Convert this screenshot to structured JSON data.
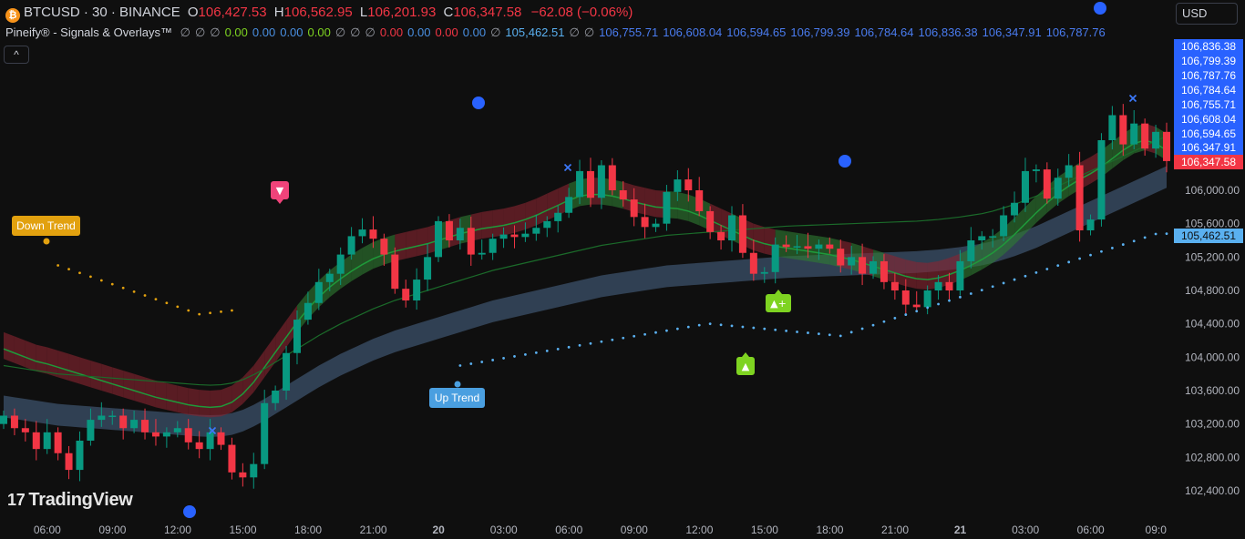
{
  "header": {
    "symbol": "BTCUSD · 30 · BINANCE",
    "coin_glyph": "₿",
    "o_label": "O",
    "o_value": "106,427.53",
    "h_label": "H",
    "h_value": "106,562.95",
    "l_label": "L",
    "l_value": "106,201.93",
    "c_label": "C",
    "c_value": "106,347.58",
    "change": "−62.08 (−0.06%)"
  },
  "indicator": {
    "name": "Pineify® - Signals & Overlays™",
    "values": [
      {
        "text": "∅",
        "color": "#9598a1"
      },
      {
        "text": "∅",
        "color": "#9598a1"
      },
      {
        "text": "∅",
        "color": "#9598a1"
      },
      {
        "text": "0.00",
        "color": "#7ed321"
      },
      {
        "text": "0.00",
        "color": "#4a90e2"
      },
      {
        "text": "0.00",
        "color": "#4a90e2"
      },
      {
        "text": "0.00",
        "color": "#7ed321"
      },
      {
        "text": "∅",
        "color": "#9598a1"
      },
      {
        "text": "∅",
        "color": "#9598a1"
      },
      {
        "text": "∅",
        "color": "#9598a1"
      },
      {
        "text": "0.00",
        "color": "#f23645"
      },
      {
        "text": "0.00",
        "color": "#4a90e2"
      },
      {
        "text": "0.00",
        "color": "#f23645"
      },
      {
        "text": "0.00",
        "color": "#4a90e2"
      },
      {
        "text": "∅",
        "color": "#9598a1"
      },
      {
        "text": "105,462.51",
        "color": "#5ab0f0"
      },
      {
        "text": "∅",
        "color": "#9598a1"
      },
      {
        "text": "∅",
        "color": "#9598a1"
      },
      {
        "text": "106,755.71",
        "color": "#4a7cf0"
      },
      {
        "text": "106,608.04",
        "color": "#4a7cf0"
      },
      {
        "text": "106,594.65",
        "color": "#4a7cf0"
      },
      {
        "text": "106,799.39",
        "color": "#4a7cf0"
      },
      {
        "text": "106,784.64",
        "color": "#4a7cf0"
      },
      {
        "text": "106,836.38",
        "color": "#4a7cf0"
      },
      {
        "text": "106,347.91",
        "color": "#4a7cf0"
      },
      {
        "text": "106,787.76",
        "color": "#4a7cf0"
      }
    ]
  },
  "controls": {
    "collapse_glyph": "^",
    "currency": "USD"
  },
  "branding": {
    "logo_mark": "17",
    "logo_text": "TradingView"
  },
  "chart_data": {
    "type": "candlestick",
    "y_ticks": [
      "106,000.00",
      "105,600.00",
      "105,200.00",
      "104,800.00",
      "104,400.00",
      "104,000.00",
      "103,600.00",
      "103,200.00",
      "102,800.00",
      "102,400.00"
    ],
    "y_tick_values": [
      106000,
      105600,
      105200,
      104800,
      104400,
      104000,
      103600,
      103200,
      102800,
      102400
    ],
    "x_ticks": [
      {
        "label": "06:00",
        "bold": false
      },
      {
        "label": "09:00",
        "bold": false
      },
      {
        "label": "12:00",
        "bold": false
      },
      {
        "label": "15:00",
        "bold": false
      },
      {
        "label": "18:00",
        "bold": false
      },
      {
        "label": "21:00",
        "bold": false
      },
      {
        "label": "20",
        "bold": true
      },
      {
        "label": "03:00",
        "bold": false
      },
      {
        "label": "06:00",
        "bold": false
      },
      {
        "label": "09:00",
        "bold": false
      },
      {
        "label": "12:00",
        "bold": false
      },
      {
        "label": "15:00",
        "bold": false
      },
      {
        "label": "18:00",
        "bold": false
      },
      {
        "label": "21:00",
        "bold": false
      },
      {
        "label": "21",
        "bold": true
      },
      {
        "label": "03:00",
        "bold": false
      },
      {
        "label": "06:00",
        "bold": false
      },
      {
        "label": "09:0",
        "bold": false
      }
    ],
    "x_tick_bar_index": [
      2,
      8,
      14,
      20,
      26,
      32,
      38,
      44,
      50,
      56,
      62,
      68,
      74,
      80,
      86,
      92,
      98,
      104
    ],
    "price_tags": [
      {
        "text": "106,836.38",
        "value": 106836.38,
        "color": "#2962ff"
      },
      {
        "text": "106,799.39",
        "value": 106799.39,
        "color": "#2962ff"
      },
      {
        "text": "106,787.76",
        "value": 106787.76,
        "color": "#2962ff"
      },
      {
        "text": "106,784.64",
        "value": 106784.64,
        "color": "#2962ff"
      },
      {
        "text": "106,755.71",
        "value": 106755.71,
        "color": "#2962ff"
      },
      {
        "text": "106,608.04",
        "value": 106608.04,
        "color": "#2962ff"
      },
      {
        "text": "106,594.65",
        "value": 106594.65,
        "color": "#2962ff"
      },
      {
        "text": "106,347.91",
        "value": 106347.91,
        "color": "#2962ff"
      },
      {
        "text": "106,347.58",
        "value": 106347.58,
        "color": "#f23645"
      },
      {
        "text": "105,462.51",
        "value": 105462.51,
        "color": "#5ab0f0"
      }
    ],
    "candles_close": [
      103300,
      103150,
      103100,
      102900,
      103100,
      102850,
      102650,
      103000,
      103250,
      103300,
      103300,
      103150,
      103250,
      103100,
      103050,
      103100,
      103150,
      102980,
      102900,
      103100,
      102950,
      102620,
      102560,
      102720,
      103450,
      103600,
      104050,
      104450,
      104650,
      104900,
      105000,
      105230,
      105450,
      105530,
      105420,
      105230,
      104820,
      104680,
      104930,
      105200,
      105630,
      105400,
      105550,
      105230,
      105250,
      105420,
      105470,
      105440,
      105480,
      105550,
      105630,
      105730,
      105920,
      106230,
      105910,
      106300,
      106000,
      105890,
      105680,
      105560,
      105600,
      105980,
      106130,
      106000,
      105750,
      105500,
      105400,
      105700,
      105250,
      105000,
      105020,
      105350,
      105320,
      105330,
      105300,
      105350,
      105300,
      105100,
      105200,
      105000,
      105150,
      104900,
      104800,
      104630,
      104600,
      104800,
      104900,
      104800,
      105150,
      105400,
      105450,
      105450,
      105700,
      105850,
      106230,
      106250,
      105900,
      106150,
      106300,
      105520,
      105650,
      106600,
      106900,
      106550,
      106800,
      106500,
      106700,
      106350
    ],
    "ribbon_fast_mid": [
      104100,
      104050,
      104000,
      103950,
      103920,
      103880,
      103840,
      103800,
      103760,
      103720,
      103680,
      103640,
      103600,
      103560,
      103520,
      103490,
      103460,
      103430,
      103410,
      103400,
      103410,
      103460,
      103560,
      103700,
      103880,
      104060,
      104240,
      104420,
      104580,
      104720,
      104840,
      104940,
      105030,
      105110,
      105180,
      105230,
      105270,
      105300,
      105330,
      105360,
      105400,
      105440,
      105480,
      105510,
      105540,
      105560,
      105580,
      105610,
      105650,
      105700,
      105760,
      105820,
      105880,
      105930,
      105950,
      105950,
      105930,
      105900,
      105860,
      105830,
      105800,
      105790,
      105780,
      105750,
      105700,
      105640,
      105580,
      105520,
      105460,
      105400,
      105360,
      105330,
      105310,
      105290,
      105270,
      105250,
      105230,
      105200,
      105170,
      105130,
      105090,
      105050,
      105010,
      104970,
      104940,
      104930,
      104950,
      104990,
      105040,
      105100,
      105170,
      105250,
      105350,
      105470,
      105600,
      105730,
      105850,
      105960,
      106050,
      106130,
      106200,
      106280,
      106380,
      106480,
      106560,
      106600,
      106560,
      106480
    ],
    "ribbon_slow_mid": [
      103400,
      103380,
      103360,
      103340,
      103320,
      103300,
      103290,
      103280,
      103270,
      103260,
      103250,
      103240,
      103230,
      103220,
      103210,
      103200,
      103190,
      103180,
      103170,
      103165,
      103170,
      103190,
      103230,
      103290,
      103360,
      103440,
      103520,
      103600,
      103680,
      103760,
      103830,
      103900,
      103960,
      104020,
      104080,
      104130,
      104180,
      104220,
      104260,
      104300,
      104340,
      104380,
      104420,
      104460,
      104500,
      104540,
      104570,
      104600,
      104630,
      104660,
      104690,
      104720,
      104750,
      104780,
      104810,
      104840,
      104860,
      104880,
      104900,
      104920,
      104940,
      104960,
      104970,
      104980,
      104990,
      105000,
      105010,
      105020,
      105030,
      105040,
      105050,
      105060,
      105070,
      105075,
      105080,
      105085,
      105090,
      105095,
      105100,
      105105,
      105110,
      105115,
      105120,
      105125,
      105130,
      105140,
      105150,
      105165,
      105180,
      105200,
      105220,
      105250,
      105290,
      105330,
      105380,
      105430,
      105490,
      105550,
      105610,
      105670,
      105730,
      105790,
      105850,
      105910,
      105970,
      106030,
      106090,
      106150
    ],
    "trailing_stop_support": [],
    "annotations": [
      {
        "type": "label",
        "text": "Down Trend",
        "color": "#e2a10f"
      },
      {
        "type": "label",
        "text": "Up Trend",
        "color": "#4a9fe0"
      },
      {
        "type": "signal",
        "text": "▼",
        "color": "#f0437a"
      },
      {
        "type": "signal",
        "text": "▲",
        "color": "#7ed321"
      },
      {
        "type": "signal",
        "text": "▲+",
        "color": "#7ed321"
      }
    ],
    "ylim": [
      102150,
      107200
    ],
    "grid": false
  }
}
